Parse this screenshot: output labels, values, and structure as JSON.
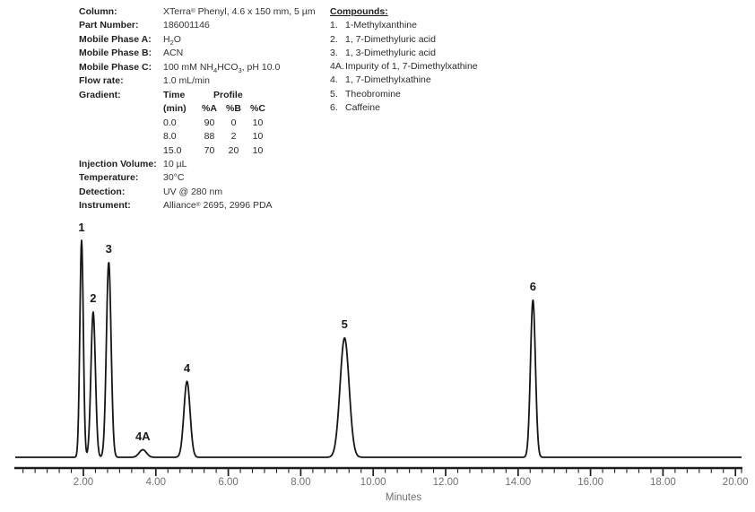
{
  "method": {
    "rows": [
      {
        "label": "Column:",
        "value": "XTerra^®^ Phenyl, 4.6 x 150 mm, 5 µm"
      },
      {
        "label": "Part Number:",
        "value": "186001146"
      },
      {
        "label": "Mobile Phase A:",
        "value": "H~2~O"
      },
      {
        "label": "Mobile Phase B:",
        "value": "ACN"
      },
      {
        "label": "Mobile Phase C:",
        "value": "100 mM NH~4~HCO~3~, pH 10.0"
      },
      {
        "label": "Flow rate:",
        "value": "1.0 mL/min"
      },
      {
        "label": "Gradient:",
        "value": ""
      }
    ],
    "gradient_table": {
      "col_time_header": "Time",
      "col_profile_header": "Profile",
      "sub_headers": [
        "(min)",
        "%A",
        "%B",
        "%C"
      ],
      "rows": [
        [
          "0.0",
          "90",
          "0",
          "10"
        ],
        [
          "8.0",
          "88",
          "2",
          "10"
        ],
        [
          "15.0",
          "70",
          "20",
          "10"
        ]
      ]
    },
    "rows2": [
      {
        "label": "Injection Volume:",
        "value": "10 µL"
      },
      {
        "label": "Temperature:",
        "value": "30°C"
      },
      {
        "label": "Detection:",
        "value": "UV @ 280 nm"
      },
      {
        "label": "Instrument:",
        "value": "Alliance^®^ 2695, 2996 PDA"
      }
    ]
  },
  "compounds": {
    "header": "Compounds:",
    "items": [
      {
        "num": "1.",
        "name": "1-Methylxanthine"
      },
      {
        "num": "2.",
        "name": "1, 7-Dimethyluric acid"
      },
      {
        "num": "3.",
        "name": "1, 3-Dimethyluric acid"
      },
      {
        "num": "4A.",
        "name": "Impurity of 1, 7-Dimethylxathine"
      },
      {
        "num": "4.",
        "name": "1, 7-Dimethylxathine"
      },
      {
        "num": "5.",
        "name": "Theobromine"
      },
      {
        "num": "6.",
        "name": "Caffeine"
      }
    ]
  },
  "chart_data": {
    "type": "line",
    "title": "",
    "xlabel": "Minutes",
    "ylabel": "",
    "xlim": [
      0.1,
      20.2
    ],
    "x_tick_values": [
      2,
      4,
      6,
      8,
      10,
      12,
      14,
      16,
      18,
      20
    ],
    "x_tick_labels": [
      "2.00",
      "4.00",
      "6.00",
      "8.00",
      "10.00",
      "12.00",
      "14.00",
      "16.00",
      "18.00",
      "20.00"
    ],
    "minor_ticks_per_major_interval": 6,
    "grid": false,
    "legend": false,
    "trace_color": "#161616",
    "peaks": [
      {
        "label": "1",
        "compound": "1-Methylxanthine",
        "retention_time_min": 1.95,
        "rel_height": 1.0,
        "sigma_min": 0.048
      },
      {
        "label": "2",
        "compound": "1, 7-Dimethyluric acid",
        "retention_time_min": 2.27,
        "rel_height": 0.67,
        "sigma_min": 0.062
      },
      {
        "label": "3",
        "compound": "1, 3-Dimethyluric acid",
        "retention_time_min": 2.7,
        "rel_height": 0.9,
        "sigma_min": 0.065
      },
      {
        "label": "4A",
        "compound": "Impurity of 1, 7-Dimethylxathine",
        "retention_time_min": 3.64,
        "rel_height": 0.035,
        "sigma_min": 0.1
      },
      {
        "label": "4",
        "compound": "1, 7-Dimethylxathine",
        "retention_time_min": 4.86,
        "rel_height": 0.35,
        "sigma_min": 0.085
      },
      {
        "label": "5",
        "compound": "Theobromine",
        "retention_time_min": 9.21,
        "rel_height": 0.55,
        "sigma_min": 0.125
      },
      {
        "label": "6",
        "compound": "Caffeine",
        "retention_time_min": 14.41,
        "rel_height": 0.725,
        "sigma_min": 0.068
      }
    ]
  }
}
